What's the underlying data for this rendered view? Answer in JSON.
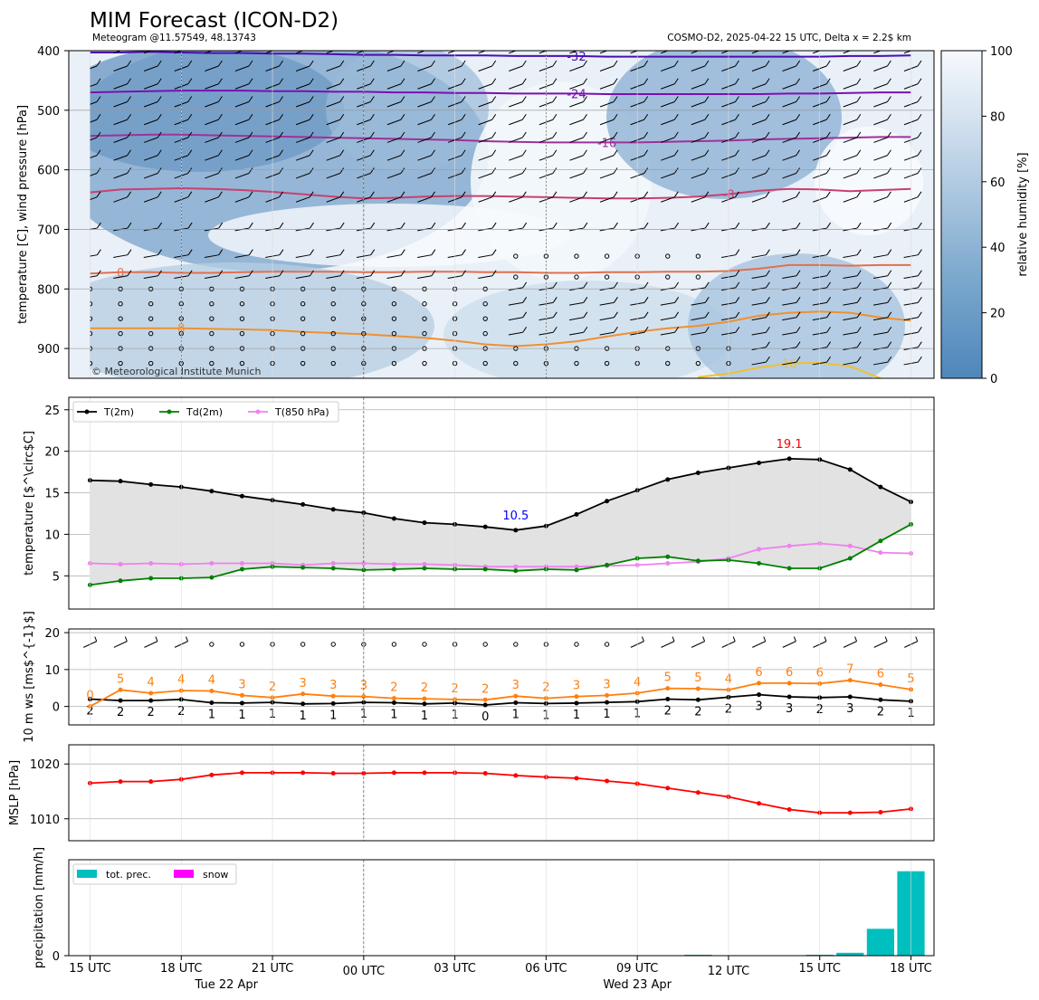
{
  "title": "MIM Forecast (ICON-D2)",
  "subtitle_left": "Meteogram @11.57549, 48.13743",
  "subtitle_right": "COSMO-D2, 2025-04-22 15 UTC, Delta x = 2.2$ km",
  "credit": "© Meteorological Institute Munich",
  "x_axis": {
    "time_labels": [
      "15 UTC",
      "18 UTC",
      "21 UTC",
      "00 UTC",
      "03 UTC",
      "06 UTC",
      "09 UTC",
      "12 UTC",
      "15 UTC",
      "18 UTC"
    ],
    "day_labels": [
      "Tue 22 Apr",
      "Wed 23 Apr"
    ]
  },
  "chart_data": [
    {
      "type": "heatmap",
      "id": "upper-air",
      "ylabel": "temperature [C], wind pressure [hPa]",
      "ylim": [
        950,
        400
      ],
      "y_ticks": [
        400,
        500,
        600,
        700,
        800,
        900
      ],
      "y_inverted": true,
      "colorbar": {
        "label": "relative humidity [%]",
        "range": [
          0,
          100
        ],
        "ticks": [
          0,
          20,
          40,
          60,
          80,
          100
        ]
      },
      "isotherms": [
        {
          "label": "-32",
          "color": "#4a0fb0",
          "pressure": [
            403,
            403,
            402,
            403,
            404,
            404,
            405,
            405,
            406,
            407,
            407,
            408,
            408,
            408,
            409,
            409,
            409,
            410,
            410,
            410,
            410,
            410,
            410,
            410,
            410,
            409,
            409,
            408
          ]
        },
        {
          "label": "-24",
          "color": "#7a10b0",
          "pressure": [
            470,
            469,
            468,
            467,
            467,
            467,
            468,
            468,
            469,
            469,
            470,
            470,
            471,
            471,
            472,
            472,
            472,
            473,
            473,
            473,
            473,
            473,
            473,
            472,
            472,
            471,
            470,
            470
          ]
        },
        {
          "label": "-16",
          "color": "#a0309a",
          "pressure": [
            543,
            542,
            541,
            541,
            542,
            543,
            544,
            545,
            546,
            547,
            548,
            549,
            550,
            552,
            553,
            554,
            554,
            554,
            554,
            553,
            552,
            551,
            549,
            548,
            547,
            546,
            545,
            545
          ]
        },
        {
          "label": "-8",
          "color": "#c84070",
          "pressure": [
            638,
            633,
            632,
            631,
            632,
            634,
            637,
            641,
            645,
            648,
            647,
            645,
            644,
            644,
            645,
            646,
            647,
            648,
            648,
            647,
            645,
            641,
            635,
            632,
            633,
            636,
            634,
            632
          ]
        },
        {
          "label": "0",
          "color": "#e07050",
          "pressure": [
            774,
            772,
            772,
            773,
            773,
            772,
            771,
            771,
            771,
            772,
            772,
            771,
            771,
            772,
            772,
            773,
            773,
            772,
            772,
            771,
            771,
            770,
            766,
            760,
            760,
            761,
            760,
            760
          ]
        },
        {
          "label": "8",
          "color": "#f09030",
          "pressure": [
            866,
            866,
            866,
            866,
            867,
            868,
            869,
            872,
            874,
            876,
            879,
            882,
            887,
            893,
            896,
            893,
            888,
            880,
            872,
            866,
            862,
            855,
            845,
            840,
            838,
            840,
            848,
            853
          ]
        },
        {
          "label": "16",
          "color": "#f0c030",
          "pressure": [
            null,
            null,
            null,
            null,
            null,
            null,
            null,
            null,
            null,
            null,
            null,
            null,
            null,
            null,
            null,
            null,
            null,
            null,
            null,
            null,
            948,
            942,
            932,
            925,
            924,
            930,
            950,
            null
          ]
        }
      ],
      "wind_levels_hPa": [
        400,
        430,
        460,
        490,
        520,
        550,
        580,
        610,
        650,
        700,
        745,
        780,
        800,
        825,
        850,
        875,
        900,
        925
      ]
    },
    {
      "type": "line",
      "id": "temperature",
      "ylabel": "temperature [$^\\circ$C]",
      "ylim": [
        1,
        26.5
      ],
      "y_ticks": [
        5,
        10,
        15,
        20,
        25
      ],
      "legend_position": "top-left",
      "series": [
        {
          "name": "T(2m)",
          "color": "#000000",
          "values": [
            16.5,
            16.4,
            16.0,
            15.7,
            15.2,
            14.6,
            14.1,
            13.6,
            13.0,
            12.6,
            11.9,
            11.4,
            11.2,
            10.9,
            10.5,
            11.0,
            12.4,
            14.0,
            15.3,
            16.6,
            17.4,
            18.0,
            18.6,
            19.1,
            19.0,
            17.8,
            15.7,
            13.9
          ]
        },
        {
          "name": "Td(2m)",
          "color": "#008000",
          "values": [
            3.9,
            4.4,
            4.7,
            4.7,
            4.8,
            5.8,
            6.1,
            6.0,
            5.9,
            5.7,
            5.8,
            5.9,
            5.8,
            5.8,
            5.6,
            5.8,
            5.7,
            6.3,
            7.1,
            7.3,
            6.8,
            6.9,
            6.5,
            5.9,
            5.9,
            7.1,
            9.2,
            11.2
          ]
        },
        {
          "name": "T(850 hPa)",
          "color": "#ee82ee",
          "values": [
            6.5,
            6.4,
            6.5,
            6.4,
            6.5,
            6.5,
            6.5,
            6.3,
            6.5,
            6.5,
            6.4,
            6.4,
            6.3,
            6.1,
            6.1,
            6.1,
            6.1,
            6.2,
            6.3,
            6.5,
            6.7,
            7.1,
            8.2,
            8.6,
            8.9,
            8.6,
            7.8,
            7.7
          ]
        }
      ],
      "annotations": [
        {
          "text": "10.5",
          "kind": "min",
          "color": "#0000ff",
          "index": 14
        },
        {
          "text": "19.1",
          "kind": "max",
          "color": "#ff0000",
          "index": 23
        }
      ]
    },
    {
      "type": "line",
      "id": "wind10m",
      "ylabel": "10 m ws [ms$^{-1}$]",
      "ylim": [
        -5,
        21
      ],
      "y_ticks": [
        0,
        10,
        20
      ],
      "series": [
        {
          "name": "mean",
          "color": "#000000",
          "values": [
            2,
            1.6,
            1.6,
            1.9,
            1,
            0.9,
            1.1,
            0.7,
            0.8,
            1.1,
            1,
            0.7,
            0.9,
            0.4,
            1,
            0.8,
            0.9,
            1.1,
            1.3,
            2,
            1.8,
            2.5,
            3.2,
            2.6,
            2.4,
            2.6,
            1.8,
            1.4
          ],
          "labels": [
            "2",
            "2",
            "2",
            "2",
            "1",
            "1",
            "1",
            "1",
            "1",
            "1",
            "1",
            "1",
            "1",
            "0",
            "1",
            "1",
            "1",
            "1",
            "1",
            "2",
            "2",
            "2",
            "3",
            "3",
            "2",
            "3",
            "2",
            "1"
          ]
        },
        {
          "name": "gusts",
          "color": "#ff7f0e",
          "values": [
            0,
            4.5,
            3.6,
            4.3,
            4.2,
            3,
            2.4,
            3.4,
            2.8,
            2.7,
            2.2,
            2.1,
            1.9,
            1.8,
            2.8,
            2.2,
            2.7,
            3,
            3.6,
            4.9,
            4.8,
            4.5,
            6.3,
            6.3,
            6.2,
            7.1,
            5.9,
            4.6
          ],
          "labels": [
            "0",
            "5",
            "4",
            "4",
            "4",
            "3",
            "2",
            "3",
            "3",
            "3",
            "2",
            "2",
            "2",
            "2",
            "3",
            "2",
            "3",
            "3",
            "4",
            "5",
            "5",
            "4",
            "6",
            "6",
            "6",
            "7",
            "6",
            "5"
          ]
        }
      ]
    },
    {
      "type": "line",
      "id": "mslp",
      "ylabel": "MSLP [hPa]",
      "ylim": [
        1006,
        1023.5
      ],
      "y_ticks": [
        1010,
        1020
      ],
      "series": [
        {
          "name": "MSLP",
          "color": "#ff0000",
          "values": [
            1016.5,
            1016.8,
            1016.8,
            1017.2,
            1018.0,
            1018.4,
            1018.4,
            1018.4,
            1018.3,
            1018.3,
            1018.4,
            1018.4,
            1018.4,
            1018.3,
            1017.9,
            1017.6,
            1017.4,
            1016.9,
            1016.4,
            1015.6,
            1014.8,
            1014.0,
            1012.8,
            1011.7,
            1011.1,
            1011.1,
            1011.2,
            1011.8
          ]
        }
      ]
    },
    {
      "type": "bar",
      "id": "precipitation",
      "ylabel": "precipitation [mm/h]",
      "ylim": [
        0,
        1.0
      ],
      "y_ticks": [
        0
      ],
      "legend_position": "top-left",
      "series": [
        {
          "name": "tot. prec.",
          "color": "#00bfbf",
          "values": [
            0,
            0,
            0,
            0,
            0,
            0,
            0,
            0,
            0,
            0,
            0,
            0,
            0,
            0,
            0,
            0,
            0,
            0,
            0,
            0,
            0.004,
            0,
            0,
            0,
            0.006,
            0.03,
            0.28,
            0.88
          ]
        },
        {
          "name": "snow",
          "color": "#ff00ff",
          "values": [
            0,
            0,
            0,
            0,
            0,
            0,
            0,
            0,
            0,
            0,
            0,
            0,
            0,
            0,
            0,
            0,
            0,
            0,
            0,
            0,
            0,
            0,
            0,
            0,
            0,
            0,
            0,
            0
          ]
        }
      ]
    }
  ]
}
